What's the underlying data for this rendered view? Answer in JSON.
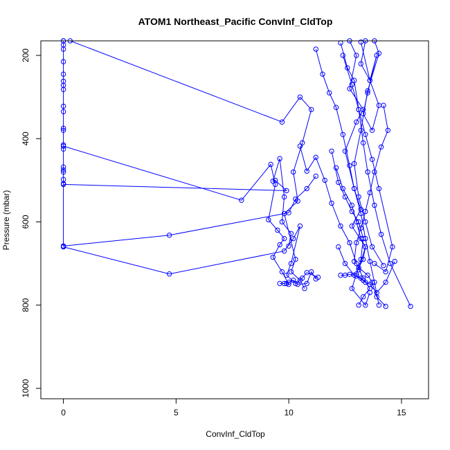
{
  "chart_data": {
    "type": "line",
    "title": "ATOM1 Northeast_Pacific ConvInf_CldTop",
    "xlabel": "ConvInf_CldTop",
    "ylabel": "Pressure (mbar)",
    "xlim": [
      -1,
      16.2
    ],
    "ylim": [
      1025,
      165
    ],
    "y_reversed": true,
    "x_ticks": [
      0,
      5,
      10,
      15
    ],
    "y_ticks": [
      200,
      400,
      600,
      800,
      1000
    ],
    "grid": false,
    "color": "#0000ff",
    "series": [
      {
        "x": [
          0,
          0,
          0,
          0,
          0,
          0,
          0,
          0,
          0,
          0,
          0,
          0,
          0,
          0,
          0,
          0,
          0,
          0,
          0,
          0,
          0
        ],
        "y": [
          165,
          175,
          185,
          215,
          245,
          262,
          272,
          282,
          322,
          335,
          375,
          380,
          415,
          425,
          468,
          475,
          480,
          498,
          508,
          658,
          165
        ]
      },
      {
        "x": [
          0,
          4.7,
          10.0,
          10.3,
          10.8,
          11.2
        ],
        "y": [
          658,
          632,
          578,
          545,
          520,
          490
        ]
      },
      {
        "x": [
          0,
          4.7,
          9.8,
          10.2,
          10.5,
          10.1,
          9.9,
          10.3,
          10.6,
          10.8,
          11.3
        ],
        "y": [
          660,
          725,
          670,
          640,
          610,
          700,
          728,
          748,
          735,
          722,
          733
        ]
      },
      {
        "x": [
          0,
          7.9,
          9.2,
          9.4,
          9.1,
          9.5,
          9.8,
          9.6,
          9.3,
          9.7,
          10.0,
          9.9
        ],
        "y": [
          418,
          548,
          462,
          510,
          595,
          620,
          640,
          655,
          685,
          720,
          750,
          748
        ]
      },
      {
        "x": [
          0,
          9.9,
          9.4,
          9.3,
          9.6,
          9.8,
          9.7,
          10.1,
          10.0
        ],
        "y": [
          510,
          525,
          500,
          502,
          448,
          540,
          600,
          628,
          658
        ]
      },
      {
        "x": [
          0.3,
          9.7,
          10.5,
          11.0,
          10.6,
          10.2,
          10.4,
          9.8,
          10.3,
          10.1,
          10.5,
          10.7
        ],
        "y": [
          165,
          360,
          300,
          330,
          410,
          480,
          550,
          580,
          690,
          720,
          740,
          760
        ]
      },
      {
        "x": [
          9.6,
          9.8,
          10.0,
          10.2,
          10.4,
          10.8,
          11.0,
          11.2
        ],
        "y": [
          748,
          748,
          745,
          740,
          750,
          748,
          720,
          737
        ]
      },
      {
        "x": [
          10.5,
          10.8,
          11.2,
          11.6,
          11.9,
          12.3,
          12.7,
          13.0,
          13.3
        ],
        "y": [
          418,
          478,
          445,
          500,
          555,
          610,
          650,
          700,
          735
        ]
      },
      {
        "x": [
          11.2,
          11.5,
          11.8,
          12.1,
          12.4,
          12.7,
          12.9,
          13.2,
          13.4,
          13.6,
          13.8,
          14.0
        ],
        "y": [
          185,
          245,
          290,
          325,
          390,
          465,
          520,
          580,
          640,
          695,
          745,
          800
        ]
      },
      {
        "x": [
          12.3,
          12.6,
          12.9,
          13.1,
          13.3,
          13.5,
          13.8,
          14.1,
          14.5,
          15.4
        ],
        "y": [
          170,
          230,
          260,
          330,
          410,
          480,
          560,
          630,
          700,
          803
        ]
      },
      {
        "x": [
          12.7,
          13.0,
          12.7,
          13.3,
          13.0,
          12.5,
          12.9,
          13.2,
          12.8,
          13.4,
          13.1
        ],
        "y": [
          165,
          200,
          280,
          330,
          360,
          430,
          520,
          570,
          610,
          660,
          715
        ]
      },
      {
        "x": [
          13.4,
          13.2,
          13.6,
          13.9,
          13.5,
          13.3,
          13.7,
          14.0,
          13.6,
          13.2
        ],
        "y": [
          165,
          220,
          260,
          200,
          290,
          340,
          380,
          320,
          260,
          168
        ]
      },
      {
        "x": [
          13.8,
          14.0,
          13.5,
          13.2,
          12.9,
          13.1,
          13.4,
          13.7,
          14.2
        ],
        "y": [
          165,
          195,
          285,
          380,
          460,
          540,
          600,
          660,
          705
        ]
      },
      {
        "x": [
          11.9,
          12.2,
          12.5,
          12.8,
          13.1,
          13.3,
          13.2,
          13.0,
          12.8,
          13.4,
          13.6
        ],
        "y": [
          430,
          505,
          540,
          575,
          600,
          640,
          690,
          725,
          760,
          800,
          770
        ]
      },
      {
        "x": [
          14.2,
          14.4,
          14.1,
          13.8,
          13.6,
          13.4,
          13.2,
          13.0,
          12.9
        ],
        "y": [
          320,
          380,
          420,
          480,
          530,
          575,
          615,
          650,
          695
        ]
      },
      {
        "x": [
          12.1,
          12.4,
          12.8,
          13.0,
          13.2,
          13.4,
          13.3,
          13.1,
          13.5,
          13.7,
          13.9,
          14.3
        ],
        "y": [
          470,
          520,
          560,
          600,
          640,
          660,
          690,
          710,
          728,
          745,
          780,
          803
        ]
      },
      {
        "x": [
          12.2,
          12.5,
          12.9,
          13.3,
          13.6,
          13.9,
          14.3,
          14.7
        ],
        "y": [
          660,
          700,
          728,
          740,
          750,
          770,
          745,
          695
        ]
      },
      {
        "x": [
          12.3,
          12.5,
          12.7,
          13.0,
          13.2,
          13.4,
          13.6,
          13.3,
          13.1
        ],
        "y": [
          728,
          728,
          726,
          730,
          735,
          745,
          760,
          780,
          800
        ]
      },
      {
        "x": [
          12.4,
          12.8,
          13.1,
          13.4,
          13.7,
          14.0,
          14.6,
          14.3,
          13.8
        ],
        "y": [
          200,
          270,
          330,
          390,
          450,
          520,
          660,
          720,
          700
        ]
      }
    ]
  }
}
